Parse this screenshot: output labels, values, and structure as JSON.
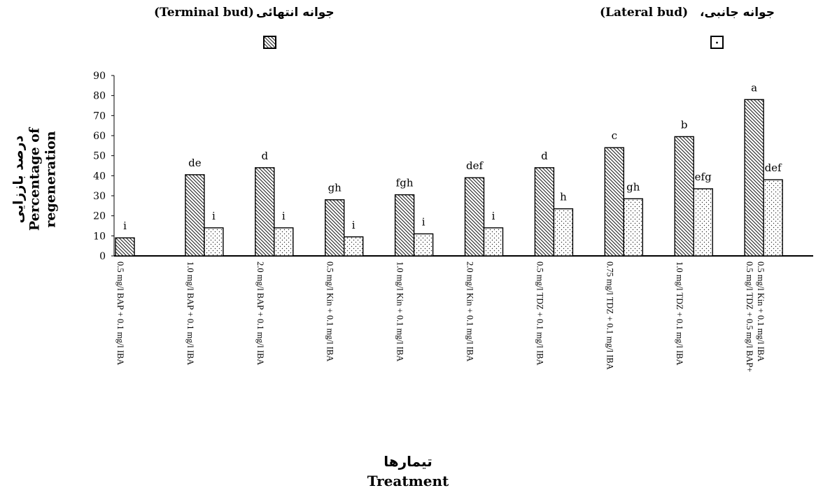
{
  "legend": {
    "terminal": {
      "fa": "جوانه انتهائی",
      "en": "(Terminal bud)"
    },
    "lateral": {
      "fa": "جوانه جانبی،",
      "en": "(Lateral bud)"
    }
  },
  "axes": {
    "y_title_fa": "درصد باززایی",
    "y_title_en_1": "Percentage of",
    "y_title_en_2": "regeneration",
    "x_title_fa": "تیمارها",
    "x_title_en": "Treatment"
  },
  "chart_data": {
    "type": "bar",
    "ylim": [
      0,
      90
    ],
    "yticks": [
      0,
      10,
      20,
      30,
      40,
      50,
      60,
      70,
      80,
      90
    ],
    "grid": false,
    "legend_position": "top",
    "categories": [
      "0.5 mg/l BAP + 0.1 mg/l IBA",
      "1.0 mg/l BAP + 0.1 mg/l IBA",
      "2.0 mg/l BAP + 0.1 mg/l IBA",
      "0.5 mg/l Kin + 0.1 mg/l IBA",
      "1.0 mg/l Kin + 0.1 mg/l IBA",
      "2.0 mg/l Kin + 0.1 mg/l IBA",
      "0.5 mg/l TDZ + 0.1 mg/l IBA",
      "0.75 mg/l TDZ + 0.1 mg/l IBA",
      "1.0 mg/l TDZ + 0.1 mg/l IBA",
      "0.5 mg/l TDZ + 0.5 mg/l BAP+|0.5 mg/l Kin + 0.1 mg/l IBA"
    ],
    "series": [
      {
        "name": "Terminal bud",
        "pattern": "diagonal-hatch",
        "values": [
          9,
          40.5,
          44,
          28,
          30.5,
          39,
          44,
          54,
          59.5,
          78
        ],
        "labels": [
          "i",
          "de",
          "d",
          "gh",
          "fgh",
          "def",
          "d",
          "c",
          "b",
          "a"
        ]
      },
      {
        "name": "Lateral bud",
        "pattern": "dots",
        "values": [
          0,
          14,
          14,
          9.5,
          11,
          14,
          23.5,
          28.5,
          33.5,
          38
        ],
        "labels": [
          "",
          "i",
          "i",
          "i",
          "i",
          "i",
          "h",
          "gh",
          "efg",
          "def"
        ]
      }
    ]
  }
}
